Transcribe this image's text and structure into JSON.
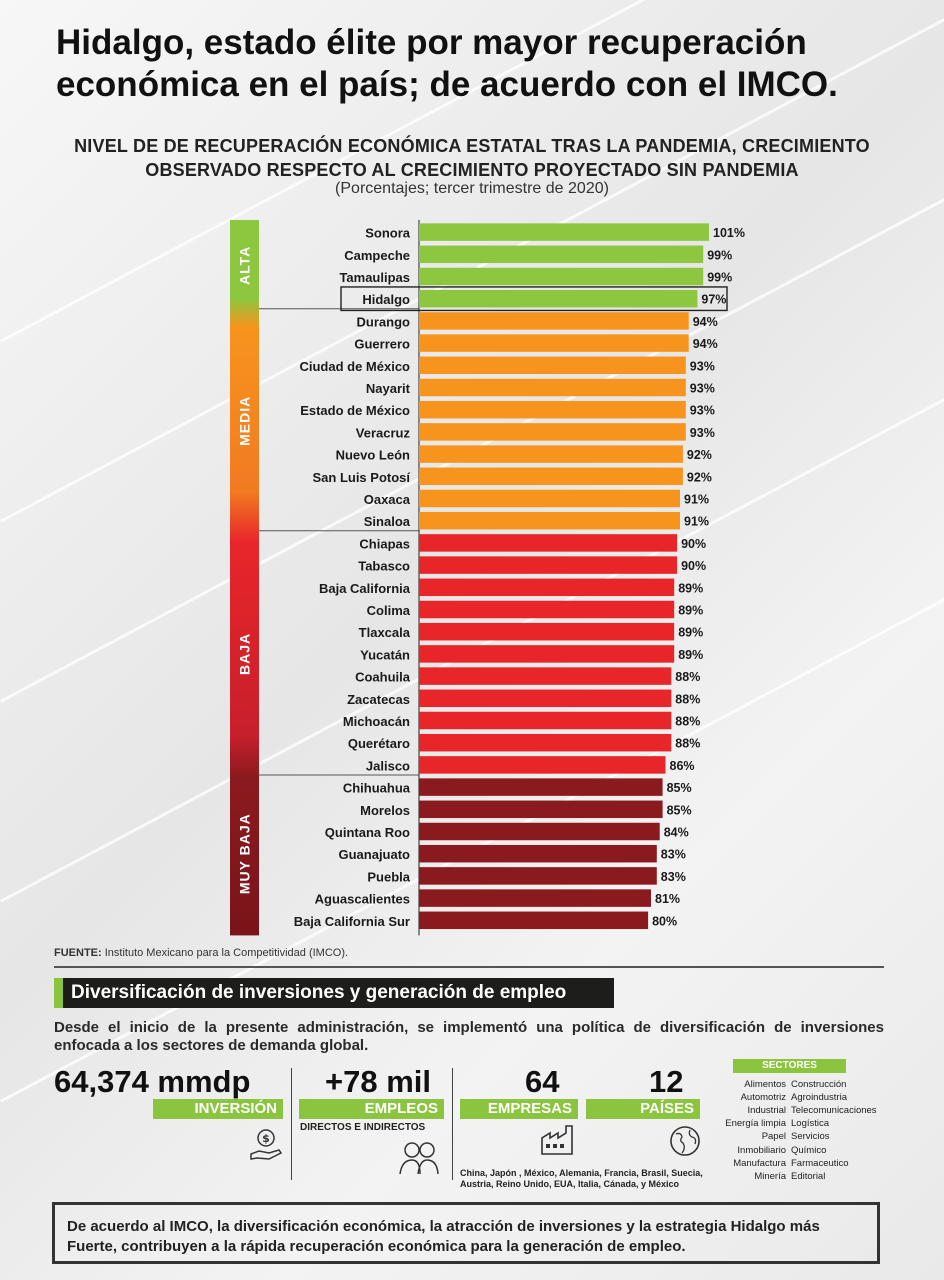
{
  "header": {
    "title": "Hidalgo, estado élite por mayor recuperación económica en el país; de acuerdo con el IMCO."
  },
  "chart_data": {
    "type": "bar",
    "orientation": "horizontal",
    "title": "NIVEL DE DE RECUPERACIÓN ECONÓMICA ESTATAL TRAS LA PANDEMIA, CRECIMIENTO OBSERVADO RESPECTO AL CRECIMIENTO  PROYECTADO SIN PANDEMIA",
    "subtitle": "(Porcentajes; tercer trimestre de 2020)",
    "highlight": "Hidalgo",
    "categories": [
      "Sonora",
      "Campeche",
      "Tamaulipas",
      "Hidalgo",
      "Durango",
      "Guerrero",
      "Ciudad de México",
      "Nayarit",
      "Estado de México",
      "Veracruz",
      "Nuevo León",
      "San Luis Potosí",
      "Oaxaca",
      "Sinaloa",
      "Chiapas",
      "Tabasco",
      "Baja California",
      "Colima",
      "Tlaxcala",
      "Yucatán",
      "Coahuila",
      "Zacatecas",
      "Michoacán",
      "Querétaro",
      "Jalisco",
      "Chihuahua",
      "Morelos",
      "Quintana Roo",
      "Guanajuato",
      "Puebla",
      "Aguascalientes",
      "Baja California Sur"
    ],
    "values": [
      101,
      99,
      99,
      97,
      94,
      94,
      93,
      93,
      93,
      93,
      92,
      92,
      91,
      91,
      90,
      90,
      89,
      89,
      89,
      89,
      88,
      88,
      88,
      88,
      86,
      85,
      85,
      84,
      83,
      83,
      81,
      80
    ],
    "value_labels": [
      "101%",
      "99%",
      "99%",
      "97%",
      "94%",
      "94%",
      "93%",
      "93%",
      "93%",
      "93%",
      "92%",
      "92%",
      "91%",
      "91%",
      "90%",
      "90%",
      "89%",
      "89%",
      "89%",
      "89%",
      "88%",
      "88%",
      "88%",
      "88%",
      "86%",
      "85%",
      "85%",
      "84%",
      "83%",
      "83%",
      "81%",
      "80%"
    ],
    "groups": [
      {
        "name": "ALTA",
        "count": 4,
        "color": "#8dc63f"
      },
      {
        "name": "MEDIA",
        "count": 10,
        "color": "#f7941d"
      },
      {
        "name": "BAJA",
        "count": 11,
        "color": "#e8262a"
      },
      {
        "name": "MUY BAJA",
        "count": 7,
        "color": "#8b1a1f"
      }
    ]
  },
  "footer": {
    "source_label": "FUENTE:",
    "source_text": "Instituto Mexicano para la Competitividad (IMCO)."
  },
  "section": {
    "heading": "Diversificación de inversiones y generación de empleo",
    "intro": "Desde el inicio de la presente administración, se implementó una política de diversificación de inversiones enfocada a los sectores de demanda global."
  },
  "stats": {
    "investment": {
      "value": "64,374 mmdp",
      "label": "INVERSIÓN"
    },
    "jobs": {
      "value": "+78 mil",
      "label": "EMPLEOS",
      "sublabel": "DIRECTOS E INDIRECTOS"
    },
    "companies": {
      "value": "64",
      "label": "EMPRESAS"
    },
    "countries": {
      "value": "12",
      "label": "PAÍSES",
      "list": "China, Japón , México, Alemania, Francia, Brasil, Suecia, Austria, Reino Unido, EUA, Italia, Cánada, y México"
    }
  },
  "sectors": {
    "header": "SECTORES",
    "left": [
      "Alimentos",
      "Automotriz",
      "Industrial",
      "Energía limpia",
      "Papel",
      "Inmobiliario",
      "Manufactura",
      "Minería"
    ],
    "right": [
      "Construcción",
      "Agroindustria",
      "Telecomunicaciones",
      "Logística",
      "Servicios",
      "Químico",
      "Farmaceutico",
      "Editorial"
    ]
  },
  "conclusion": "De acuerdo al IMCO, la diversificación económica, la atracción de inversiones y la estrategia Hidalgo más Fuerte, contribuyen a la rápida recuperación económica para la generación de empleo."
}
